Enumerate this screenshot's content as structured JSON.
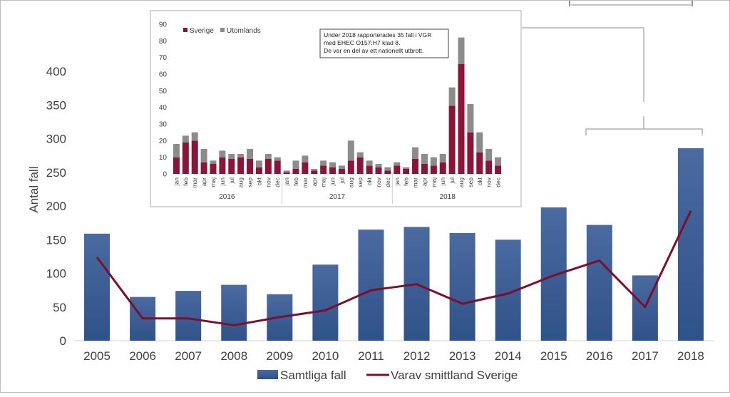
{
  "chart_data": [
    {
      "type": "bar+line",
      "title": "",
      "xlabel": "",
      "ylabel": "Antal fall",
      "ylim": [
        0,
        450
      ],
      "yticks": [
        0,
        50,
        100,
        150,
        200,
        250,
        300,
        350,
        400
      ],
      "grid": false,
      "legend_position": "bottom",
      "categories": [
        "2005",
        "2006",
        "2007",
        "2008",
        "2009",
        "2010",
        "2011",
        "2012",
        "2013",
        "2014",
        "2015",
        "2016",
        "2017",
        "2018"
      ],
      "series": [
        {
          "name": "Samtliga fall",
          "kind": "bar",
          "color": "#2f5289",
          "values": [
            159,
            65,
            74,
            83,
            69,
            113,
            165,
            169,
            160,
            150,
            198,
            172,
            97,
            286
          ]
        },
        {
          "name": "Varav smittland Sverige",
          "kind": "line",
          "color": "#7a0f2e",
          "values": [
            124,
            33,
            33,
            23,
            35,
            45,
            75,
            84,
            55,
            70,
            97,
            119,
            50,
            193
          ]
        }
      ]
    },
    {
      "type": "stacked-bar",
      "title": "",
      "ylim": [
        0,
        90
      ],
      "yticks": [
        0,
        10,
        20,
        30,
        40,
        50,
        60,
        70,
        80,
        90
      ],
      "legend_position": "top-left",
      "categories": [
        "jan",
        "feb",
        "mar",
        "apr",
        "maj",
        "jun",
        "jul",
        "aug",
        "sep",
        "okt",
        "nov",
        "dec",
        "jan",
        "feb",
        "mar",
        "apr",
        "maj",
        "jun",
        "jul",
        "aug",
        "sep",
        "okt",
        "nov",
        "dec",
        "jan",
        "feb",
        "mar",
        "apr",
        "maj",
        "jun",
        "jul",
        "aug",
        "sep",
        "okt",
        "nov",
        "dec"
      ],
      "groups": [
        "2016",
        "2017",
        "2018"
      ],
      "series": [
        {
          "name": "Sverige",
          "color": "#8b1538",
          "values": [
            10,
            19,
            20,
            7,
            6,
            10,
            9,
            10,
            9,
            4,
            9,
            8,
            1,
            3,
            7,
            2,
            5,
            4,
            3,
            8,
            10,
            5,
            4,
            2,
            5,
            3,
            9,
            6,
            5,
            7,
            41,
            66,
            25,
            13,
            8,
            5
          ]
        },
        {
          "name": "Utomlands",
          "color": "#8c8c8c",
          "values": [
            8,
            4,
            5,
            8,
            2,
            4,
            3,
            2,
            6,
            4,
            3,
            2,
            1,
            5,
            4,
            1,
            3,
            3,
            2,
            12,
            3,
            3,
            2,
            2,
            2,
            1,
            7,
            6,
            5,
            5,
            11,
            16,
            17,
            12,
            7,
            5
          ]
        }
      ],
      "annotation": [
        "Under 2018 rapporterades 35 fall i VGR",
        "med EHEC O157:H7 klad 8.",
        "De var en del av ett nationellt  utbrott."
      ]
    }
  ]
}
